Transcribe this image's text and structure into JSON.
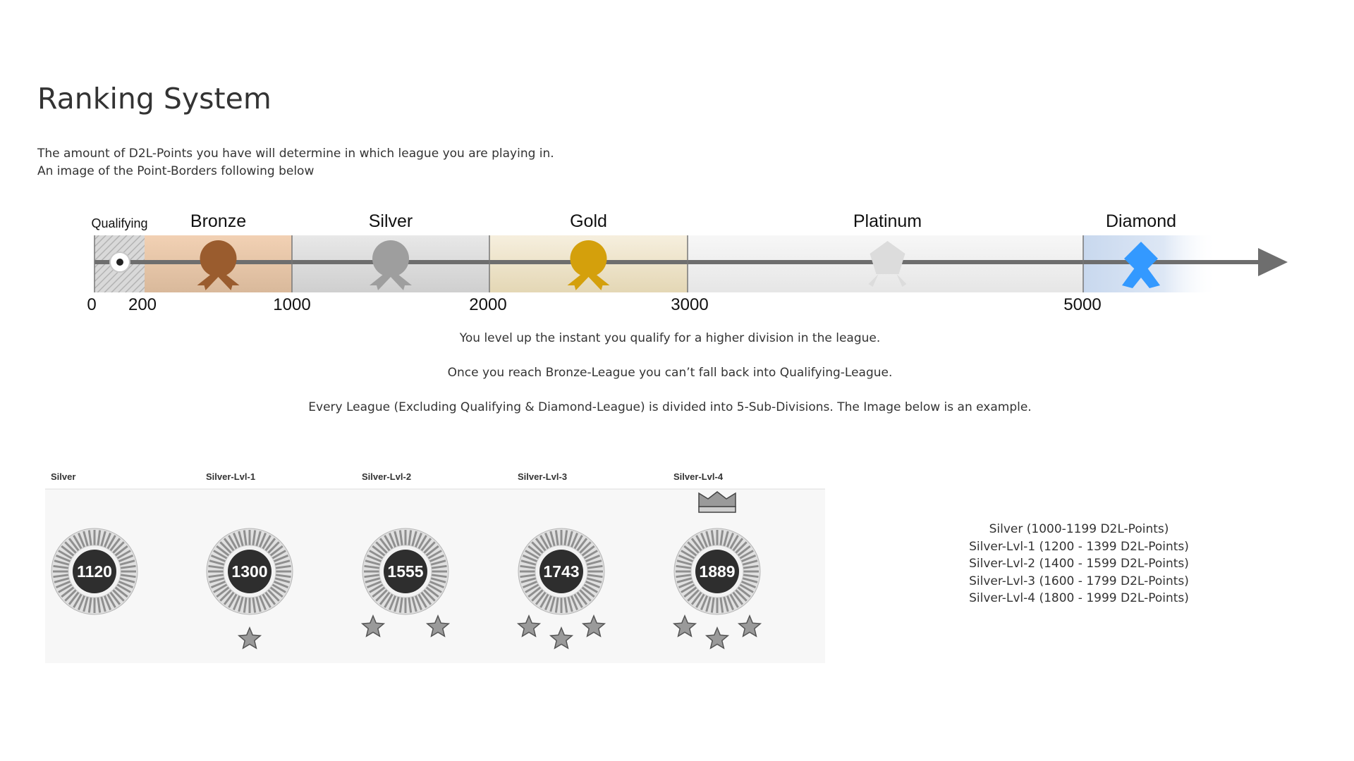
{
  "page": {
    "title": "Ranking System",
    "intro_lines": [
      "The amount of D2L-Points you have will determine in which league you are playing in.",
      "An image of the Point-Borders following below"
    ]
  },
  "timeline": {
    "leagues": [
      {
        "name": "Qualifying",
        "min": 0,
        "max": 200,
        "icon": "qualifying-target-icon"
      },
      {
        "name": "Bronze",
        "min": 200,
        "max": 1000,
        "icon": "bronze-medal-icon",
        "color": "#9a5c2e"
      },
      {
        "name": "Silver",
        "min": 1000,
        "max": 2000,
        "icon": "silver-medal-icon",
        "color": "#9e9e9e"
      },
      {
        "name": "Gold",
        "min": 2000,
        "max": 3000,
        "icon": "gold-medal-icon",
        "color": "#d4a00c"
      },
      {
        "name": "Platinum",
        "min": 3000,
        "max": 5000,
        "icon": "platinum-medal-icon",
        "color": "#dcdcdc"
      },
      {
        "name": "Diamond",
        "min": 5000,
        "max": null,
        "icon": "diamond-medal-icon",
        "color": "#3399ff"
      }
    ],
    "tick_labels": [
      "0",
      "200",
      "1000",
      "2000",
      "3000",
      "5000"
    ]
  },
  "notes": [
    "You level up the instant you qualify for a higher division in the league.",
    "Once you reach Bronze-League you can’t fall back into Qualifying-League.",
    "Every League (Excluding Qualifying & Diamond-League) is divided into 5-Sub-Divisions. The Image below is an example."
  ],
  "subdivision_example": [
    {
      "label": "Silver",
      "points": "1120",
      "stars": 0,
      "crown": false
    },
    {
      "label": "Silver-Lvl-1",
      "points": "1300",
      "stars": 1,
      "crown": false
    },
    {
      "label": "Silver-Lvl-2",
      "points": "1555",
      "stars": 2,
      "crown": false
    },
    {
      "label": "Silver-Lvl-3",
      "points": "1743",
      "stars": 3,
      "crown": false
    },
    {
      "label": "Silver-Lvl-4",
      "points": "1889",
      "stars": 3,
      "crown": true
    }
  ],
  "subdivision_ranges": [
    "Silver (1000-1199 D2L-Points)",
    "Silver-Lvl-1 (1200 - 1399 D2L-Points)",
    "Silver-Lvl-2 (1400 - 1599 D2L-Points)",
    "Silver-Lvl-3 (1600 - 1799 D2L-Points)",
    "Silver-Lvl-4 (1800 - 1999 D2L-Points)"
  ]
}
